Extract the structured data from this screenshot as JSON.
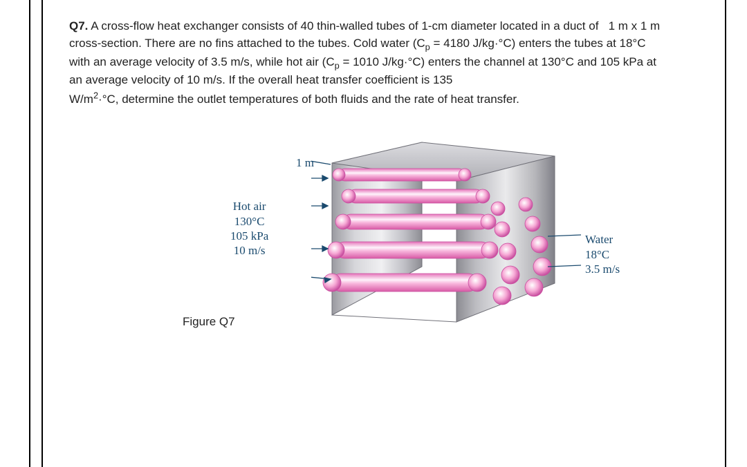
{
  "question": {
    "label": "Q7.",
    "body_html": "A cross-flow heat exchanger consists of 40 thin-walled tubes of 1-cm diameter located in a duct of   1 m x 1 m cross-section. There are no fins attached to the tubes. Cold water (C<span class='sub'>p</span> = 4180 J/kg·°C) enters the tubes at 18°C with an average velocity of 3.5 m/s, while hot air (C<span class='sub'>p</span> = 1010 J/kg·°C) enters the channel at 130°C and 105 kPa at an average velocity of 10 m/s. If the overall heat transfer coefficient is 135",
    "body2_html": "W/m<span class='sup'>2</span>·°C, determine the outlet temperatures of both fluids and the rate of heat transfer."
  },
  "figure": {
    "caption": "Figure Q7",
    "dim_top": "1 m",
    "dim_left": "1 m",
    "hot_air": {
      "l1": "Hot air",
      "l2": "130°C",
      "l3": "105 kPa",
      "l4": "10 m/s"
    },
    "water": {
      "l1": "Water",
      "l2": "18°C",
      "l3": "3.5 m/s"
    },
    "colors": {
      "text": "#1a4a6e",
      "duct_light": "#e3e3e5",
      "duct_mid": "#b6b6ba",
      "duct_dark": "#8c8c92",
      "tube_fill": "#f6a7d4",
      "tube_hi": "#ffffff",
      "tube_edge": "#c94fa0"
    }
  }
}
